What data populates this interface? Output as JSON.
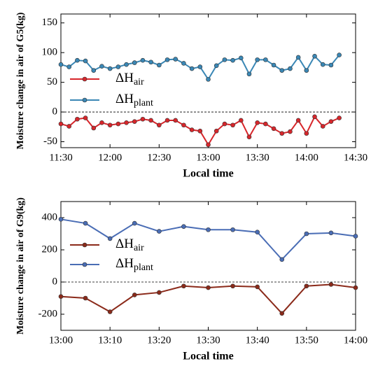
{
  "chart_data": [
    {
      "type": "line",
      "ylabel": "Moisture change in air of G5(kg)",
      "xlabel": "Local time",
      "x": [
        "11:30",
        "11:35",
        "11:40",
        "11:45",
        "11:50",
        "11:55",
        "12:00",
        "12:05",
        "12:10",
        "12:15",
        "12:20",
        "12:25",
        "12:30",
        "12:35",
        "12:40",
        "12:45",
        "12:50",
        "12:55",
        "13:00",
        "13:05",
        "13:10",
        "13:15",
        "13:20",
        "13:25",
        "13:30",
        "13:35",
        "13:40",
        "13:45",
        "13:50",
        "13:55",
        "14:00",
        "14:05",
        "14:10",
        "14:15",
        "14:20"
      ],
      "series": [
        {
          "name": "ΔHair",
          "color": "#d7262b",
          "values": [
            -20,
            -24,
            -12,
            -10,
            -27,
            -18,
            -22,
            -20,
            -18,
            -16,
            -12,
            -14,
            -22,
            -14,
            -14,
            -22,
            -30,
            -32,
            -55,
            -32,
            -20,
            -22,
            -14,
            -42,
            -18,
            -20,
            -28,
            -36,
            -33,
            -14,
            -36,
            -8,
            -24,
            -16,
            -10
          ]
        },
        {
          "name": "ΔHplant",
          "color": "#3a87b5",
          "values": [
            80,
            76,
            87,
            86,
            70,
            77,
            73,
            76,
            80,
            83,
            87,
            84,
            79,
            88,
            89,
            82,
            73,
            76,
            55,
            78,
            88,
            87,
            91,
            64,
            88,
            88,
            79,
            70,
            73,
            92,
            70,
            94,
            80,
            79,
            96
          ]
        }
      ],
      "xlim": [
        "11:30",
        "14:30"
      ],
      "xticks": [
        "11:30",
        "12:00",
        "12:30",
        "13:00",
        "13:30",
        "14:00",
        "14:30"
      ],
      "ylim": [
        -60,
        165
      ],
      "yticks": [
        -50,
        0,
        50,
        100,
        150
      ],
      "reference_line": 0
    },
    {
      "type": "line",
      "ylabel": "Moisture change in air of G9(kg)",
      "xlabel": "Local time",
      "x": [
        "13:00",
        "13:05",
        "13:10",
        "13:15",
        "13:20",
        "13:25",
        "13:30",
        "13:35",
        "13:40",
        "13:45",
        "13:50",
        "13:55",
        "14:00"
      ],
      "series": [
        {
          "name": "ΔHair",
          "color": "#8b2a1a",
          "values": [
            -90,
            -100,
            -185,
            -80,
            -65,
            -25,
            -35,
            -25,
            -30,
            -195,
            -25,
            -15,
            -35
          ]
        },
        {
          "name": "ΔHplant",
          "color": "#4a6db5",
          "values": [
            390,
            365,
            270,
            365,
            315,
            345,
            325,
            325,
            310,
            140,
            300,
            305,
            285
          ]
        }
      ],
      "xlim": [
        "13:00",
        "14:00"
      ],
      "xticks": [
        "13:00",
        "13:10",
        "13:20",
        "13:30",
        "13:40",
        "13:50",
        "14:00"
      ],
      "ylim": [
        -300,
        500
      ],
      "yticks": [
        -200,
        0,
        200,
        400
      ],
      "reference_line": 0
    }
  ]
}
